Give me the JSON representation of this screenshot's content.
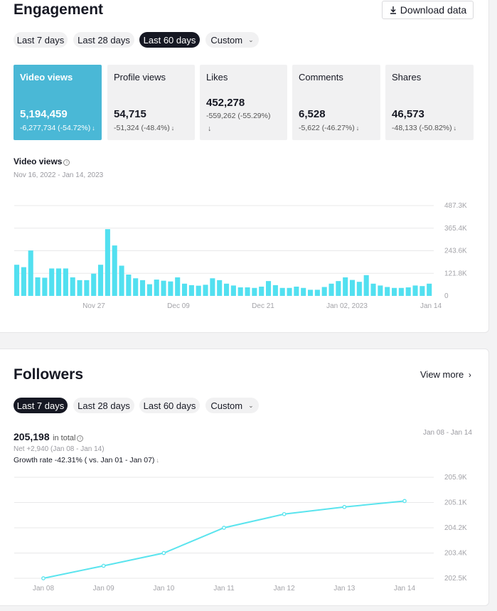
{
  "engagement": {
    "title": "Engagement",
    "download_label": "Download data",
    "download_icon": "download-icon",
    "ranges": [
      {
        "label": "Last 7 days",
        "active": false
      },
      {
        "label": "Last 28 days",
        "active": false
      },
      {
        "label": "Last 60 days",
        "active": true
      },
      {
        "label": "Custom",
        "active": false
      }
    ],
    "metrics": [
      {
        "label": "Video views",
        "value": "5,194,459",
        "delta": "-6,277,734 (-54.72%)",
        "active": true
      },
      {
        "label": "Profile views",
        "value": "54,715",
        "delta": "-51,324 (-48.4%)",
        "active": false
      },
      {
        "label": "Likes",
        "value": "452,278",
        "delta": "-559,262 (-55.29%)",
        "active": false
      },
      {
        "label": "Comments",
        "value": "6,528",
        "delta": "-5,622 (-46.27%)",
        "active": false
      },
      {
        "label": "Shares",
        "value": "46,573",
        "delta": "-48,133 (-50.82%)",
        "active": false
      }
    ],
    "chart_title": "Video views",
    "chart_dates": "Nov 16, 2022 - Jan 14, 2023",
    "accent": "#4ab8d6",
    "bar_color": "#52e0f0"
  },
  "followers": {
    "title": "Followers",
    "view_more": "View more",
    "ranges": [
      {
        "label": "Last 7 days",
        "active": true
      },
      {
        "label": "Last 28 days",
        "active": false
      },
      {
        "label": "Last 60 days",
        "active": false
      },
      {
        "label": "Custom",
        "active": false
      }
    ],
    "total_value": "205,198",
    "total_suffix": "in total",
    "net": "Net +2,940 (Jan 08 - Jan 14)",
    "growth": "Growth rate -42.31% ( vs. Jan 01 - Jan 07)",
    "date_range": "Jan 08 - Jan 14",
    "line_color": "#5ae4ee"
  },
  "chart_data": [
    {
      "type": "bar",
      "title": "Video views",
      "x_tick_labels": [
        "Nov 27",
        "Dec 09",
        "Dec 21",
        "Jan 02, 2023",
        "Jan 14"
      ],
      "y_tick_labels": [
        "0",
        "121.8K",
        "243.6K",
        "365.4K",
        "487.3K"
      ],
      "ylim": [
        0,
        487300
      ],
      "categories": [
        "Nov 16",
        "Nov 17",
        "Nov 18",
        "Nov 19",
        "Nov 20",
        "Nov 21",
        "Nov 22",
        "Nov 23",
        "Nov 24",
        "Nov 25",
        "Nov 26",
        "Nov 27",
        "Nov 28",
        "Nov 29",
        "Nov 30",
        "Dec 01",
        "Dec 02",
        "Dec 03",
        "Dec 04",
        "Dec 05",
        "Dec 06",
        "Dec 07",
        "Dec 08",
        "Dec 09",
        "Dec 10",
        "Dec 11",
        "Dec 12",
        "Dec 13",
        "Dec 14",
        "Dec 15",
        "Dec 16",
        "Dec 17",
        "Dec 18",
        "Dec 19",
        "Dec 20",
        "Dec 21",
        "Dec 22",
        "Dec 23",
        "Dec 24",
        "Dec 25",
        "Dec 26",
        "Dec 27",
        "Dec 28",
        "Dec 29",
        "Dec 30",
        "Dec 31",
        "Jan 01",
        "Jan 02",
        "Jan 03",
        "Jan 04",
        "Jan 05",
        "Jan 06",
        "Jan 07",
        "Jan 08",
        "Jan 09",
        "Jan 10",
        "Jan 11",
        "Jan 12",
        "Jan 13",
        "Jan 14"
      ],
      "values": [
        168000,
        155000,
        245000,
        100000,
        98000,
        148000,
        148000,
        148000,
        100000,
        85000,
        85000,
        120000,
        168000,
        360000,
        272000,
        163000,
        115000,
        95000,
        85000,
        63000,
        88000,
        82000,
        78000,
        100000,
        66000,
        58000,
        55000,
        60000,
        95000,
        85000,
        66000,
        56000,
        46000,
        46000,
        43000,
        50000,
        80000,
        58000,
        43000,
        43000,
        50000,
        43000,
        33000,
        33000,
        48000,
        66000,
        80000,
        100000,
        86000,
        76000,
        112000,
        66000,
        56000,
        48000,
        43000,
        43000,
        46000,
        56000,
        53000,
        66000
      ],
      "grid": true
    },
    {
      "type": "line",
      "x_tick_labels": [
        "Jan 08",
        "Jan 09",
        "Jan 10",
        "Jan 11",
        "Jan 12",
        "Jan 13",
        "Jan 14"
      ],
      "y_tick_labels": [
        "202.5K",
        "203.4K",
        "204.2K",
        "205.1K",
        "205.9K"
      ],
      "ylim": [
        202500,
        205900
      ],
      "series": [
        {
          "values": [
            202500,
            202920,
            203350,
            204200,
            204660,
            204900,
            205100
          ]
        }
      ],
      "grid": true
    }
  ]
}
